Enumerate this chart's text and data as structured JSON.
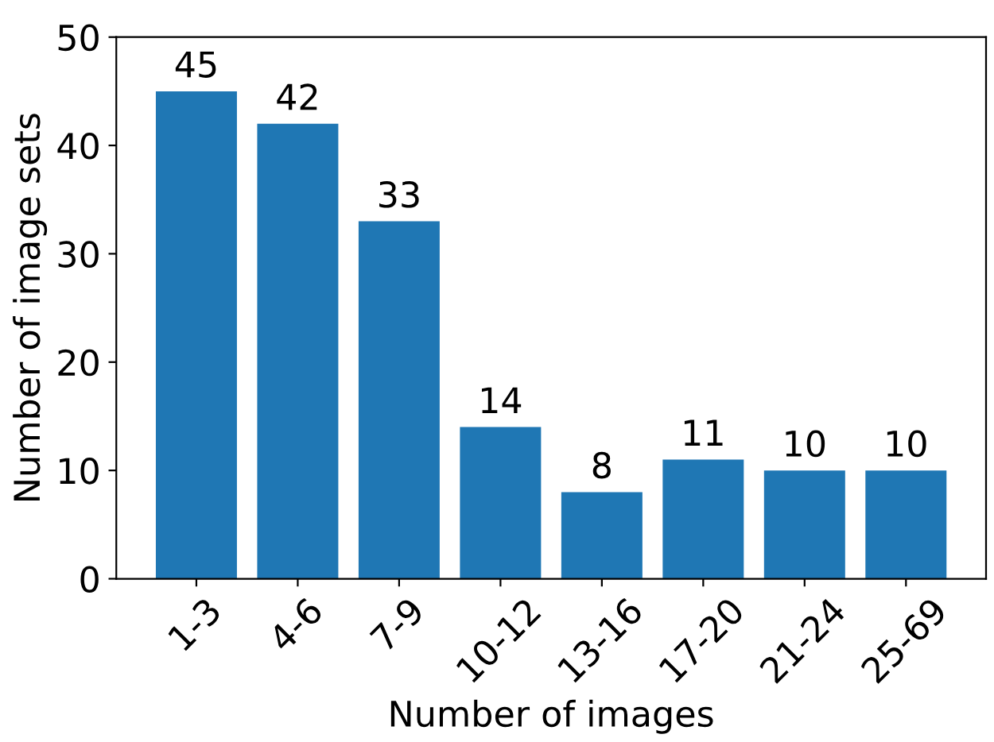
{
  "chart_data": {
    "type": "bar",
    "xlabel": "Number of images",
    "ylabel": "Number of image sets",
    "categories": [
      "1-3",
      "4-6",
      "7-9",
      "10-12",
      "13-16",
      "17-20",
      "21-24",
      "25-69"
    ],
    "values": [
      45,
      42,
      33,
      14,
      8,
      11,
      10,
      10
    ],
    "color": "#1f77b4",
    "ylim": [
      0,
      50
    ],
    "yticks": [
      0,
      10,
      20,
      30,
      40,
      50
    ],
    "grid": false,
    "legend": false,
    "data_labels": true
  }
}
